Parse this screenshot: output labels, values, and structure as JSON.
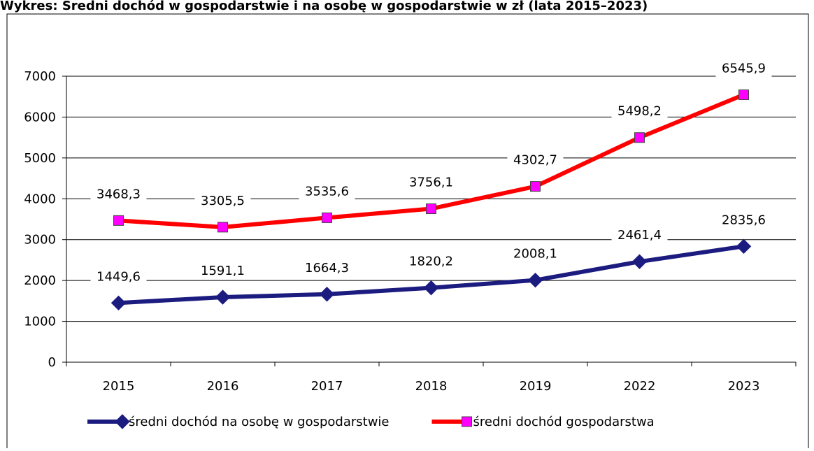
{
  "chart_data": {
    "type": "line",
    "title": "Wykres: Średni dochód w gospodarstwie i na osobę w gospodarstwie w zł (lata 2015–2023)",
    "categories": [
      "2015",
      "2016",
      "2017",
      "2018",
      "2019",
      "2022",
      "2023"
    ],
    "series": [
      {
        "name": "średni dochód na osobę w gospodarstwie",
        "color": "#1c1c80",
        "marker": "diamond",
        "marker_color": "#1c1c80",
        "values": [
          1449.6,
          1591.1,
          1664.3,
          1820.2,
          2008.1,
          2461.4,
          2835.6
        ],
        "value_labels": [
          "1449,6",
          "1591,1",
          "1664,3",
          "1820,2",
          "2008,1",
          "2461,4",
          "2835,6"
        ]
      },
      {
        "name": "średni dochód gospodarstwa",
        "color": "#ff0000",
        "marker": "square",
        "marker_color": "#ff00ff",
        "values": [
          3468.3,
          3305.5,
          3535.6,
          3756.1,
          4302.7,
          5498.2,
          6545.9
        ],
        "value_labels": [
          "3468,3",
          "3305,5",
          "3535,6",
          "3756,1",
          "4302,7",
          "5498,2",
          "6545,9"
        ]
      }
    ],
    "ylim": [
      0,
      7000
    ],
    "yticks": [
      0,
      1000,
      2000,
      3000,
      4000,
      5000,
      6000,
      7000
    ],
    "grid": true,
    "legend": "bottom"
  }
}
